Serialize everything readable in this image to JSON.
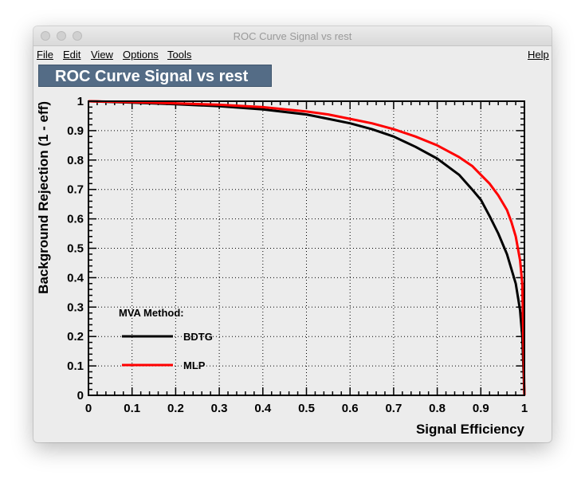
{
  "window": {
    "title": "ROC Curve Signal vs rest"
  },
  "menu": {
    "file": "File",
    "edit": "Edit",
    "view": "View",
    "options": "Options",
    "tools": "Tools",
    "help": "Help"
  },
  "canvas_title": "ROC Curve Signal vs rest",
  "colors": {
    "bdtg": "#000000",
    "mlp": "#ff0000",
    "title_bg": "#546c86"
  },
  "chart_data": {
    "type": "line",
    "xlabel": "Signal Efficiency",
    "ylabel": "Background Rejection (1 - eff)",
    "xlim": [
      0,
      1
    ],
    "ylim": [
      0,
      1
    ],
    "grid": true,
    "x_ticks": [
      0,
      0.1,
      0.2,
      0.3,
      0.4,
      0.5,
      0.6,
      0.7,
      0.8,
      0.9,
      1
    ],
    "x_tick_labels": [
      "0",
      "0.1",
      "0.2",
      "0.3",
      "0.4",
      "0.5",
      "0.6",
      "0.7",
      "0.8",
      "0.9",
      "1"
    ],
    "y_ticks": [
      0,
      0.1,
      0.2,
      0.3,
      0.4,
      0.5,
      0.6,
      0.7,
      0.8,
      0.9,
      1
    ],
    "y_tick_labels": [
      "0",
      "0.1",
      "0.2",
      "0.3",
      "0.4",
      "0.5",
      "0.6",
      "0.7",
      "0.8",
      "0.9",
      "1"
    ],
    "legend": {
      "title": "MVA Method:",
      "placement": "bottom-left"
    },
    "series": [
      {
        "name": "BDTG",
        "x": [
          0,
          0.1,
          0.2,
          0.3,
          0.4,
          0.5,
          0.55,
          0.6,
          0.65,
          0.7,
          0.75,
          0.8,
          0.85,
          0.88,
          0.9,
          0.92,
          0.94,
          0.96,
          0.97,
          0.98,
          0.985,
          0.99,
          0.995,
          1.0
        ],
        "y": [
          1.0,
          0.995,
          0.99,
          0.983,
          0.972,
          0.955,
          0.94,
          0.925,
          0.905,
          0.88,
          0.845,
          0.805,
          0.75,
          0.7,
          0.665,
          0.61,
          0.55,
          0.48,
          0.43,
          0.38,
          0.335,
          0.29,
          0.2,
          0.0
        ]
      },
      {
        "name": "MLP",
        "x": [
          0,
          0.1,
          0.2,
          0.3,
          0.4,
          0.5,
          0.55,
          0.6,
          0.65,
          0.7,
          0.75,
          0.8,
          0.85,
          0.88,
          0.9,
          0.92,
          0.94,
          0.96,
          0.97,
          0.98,
          0.99,
          0.995,
          1.0
        ],
        "y": [
          1.0,
          0.997,
          0.993,
          0.988,
          0.98,
          0.965,
          0.955,
          0.94,
          0.925,
          0.905,
          0.88,
          0.85,
          0.81,
          0.78,
          0.75,
          0.72,
          0.68,
          0.63,
          0.59,
          0.54,
          0.46,
          0.38,
          0.0
        ]
      }
    ]
  }
}
